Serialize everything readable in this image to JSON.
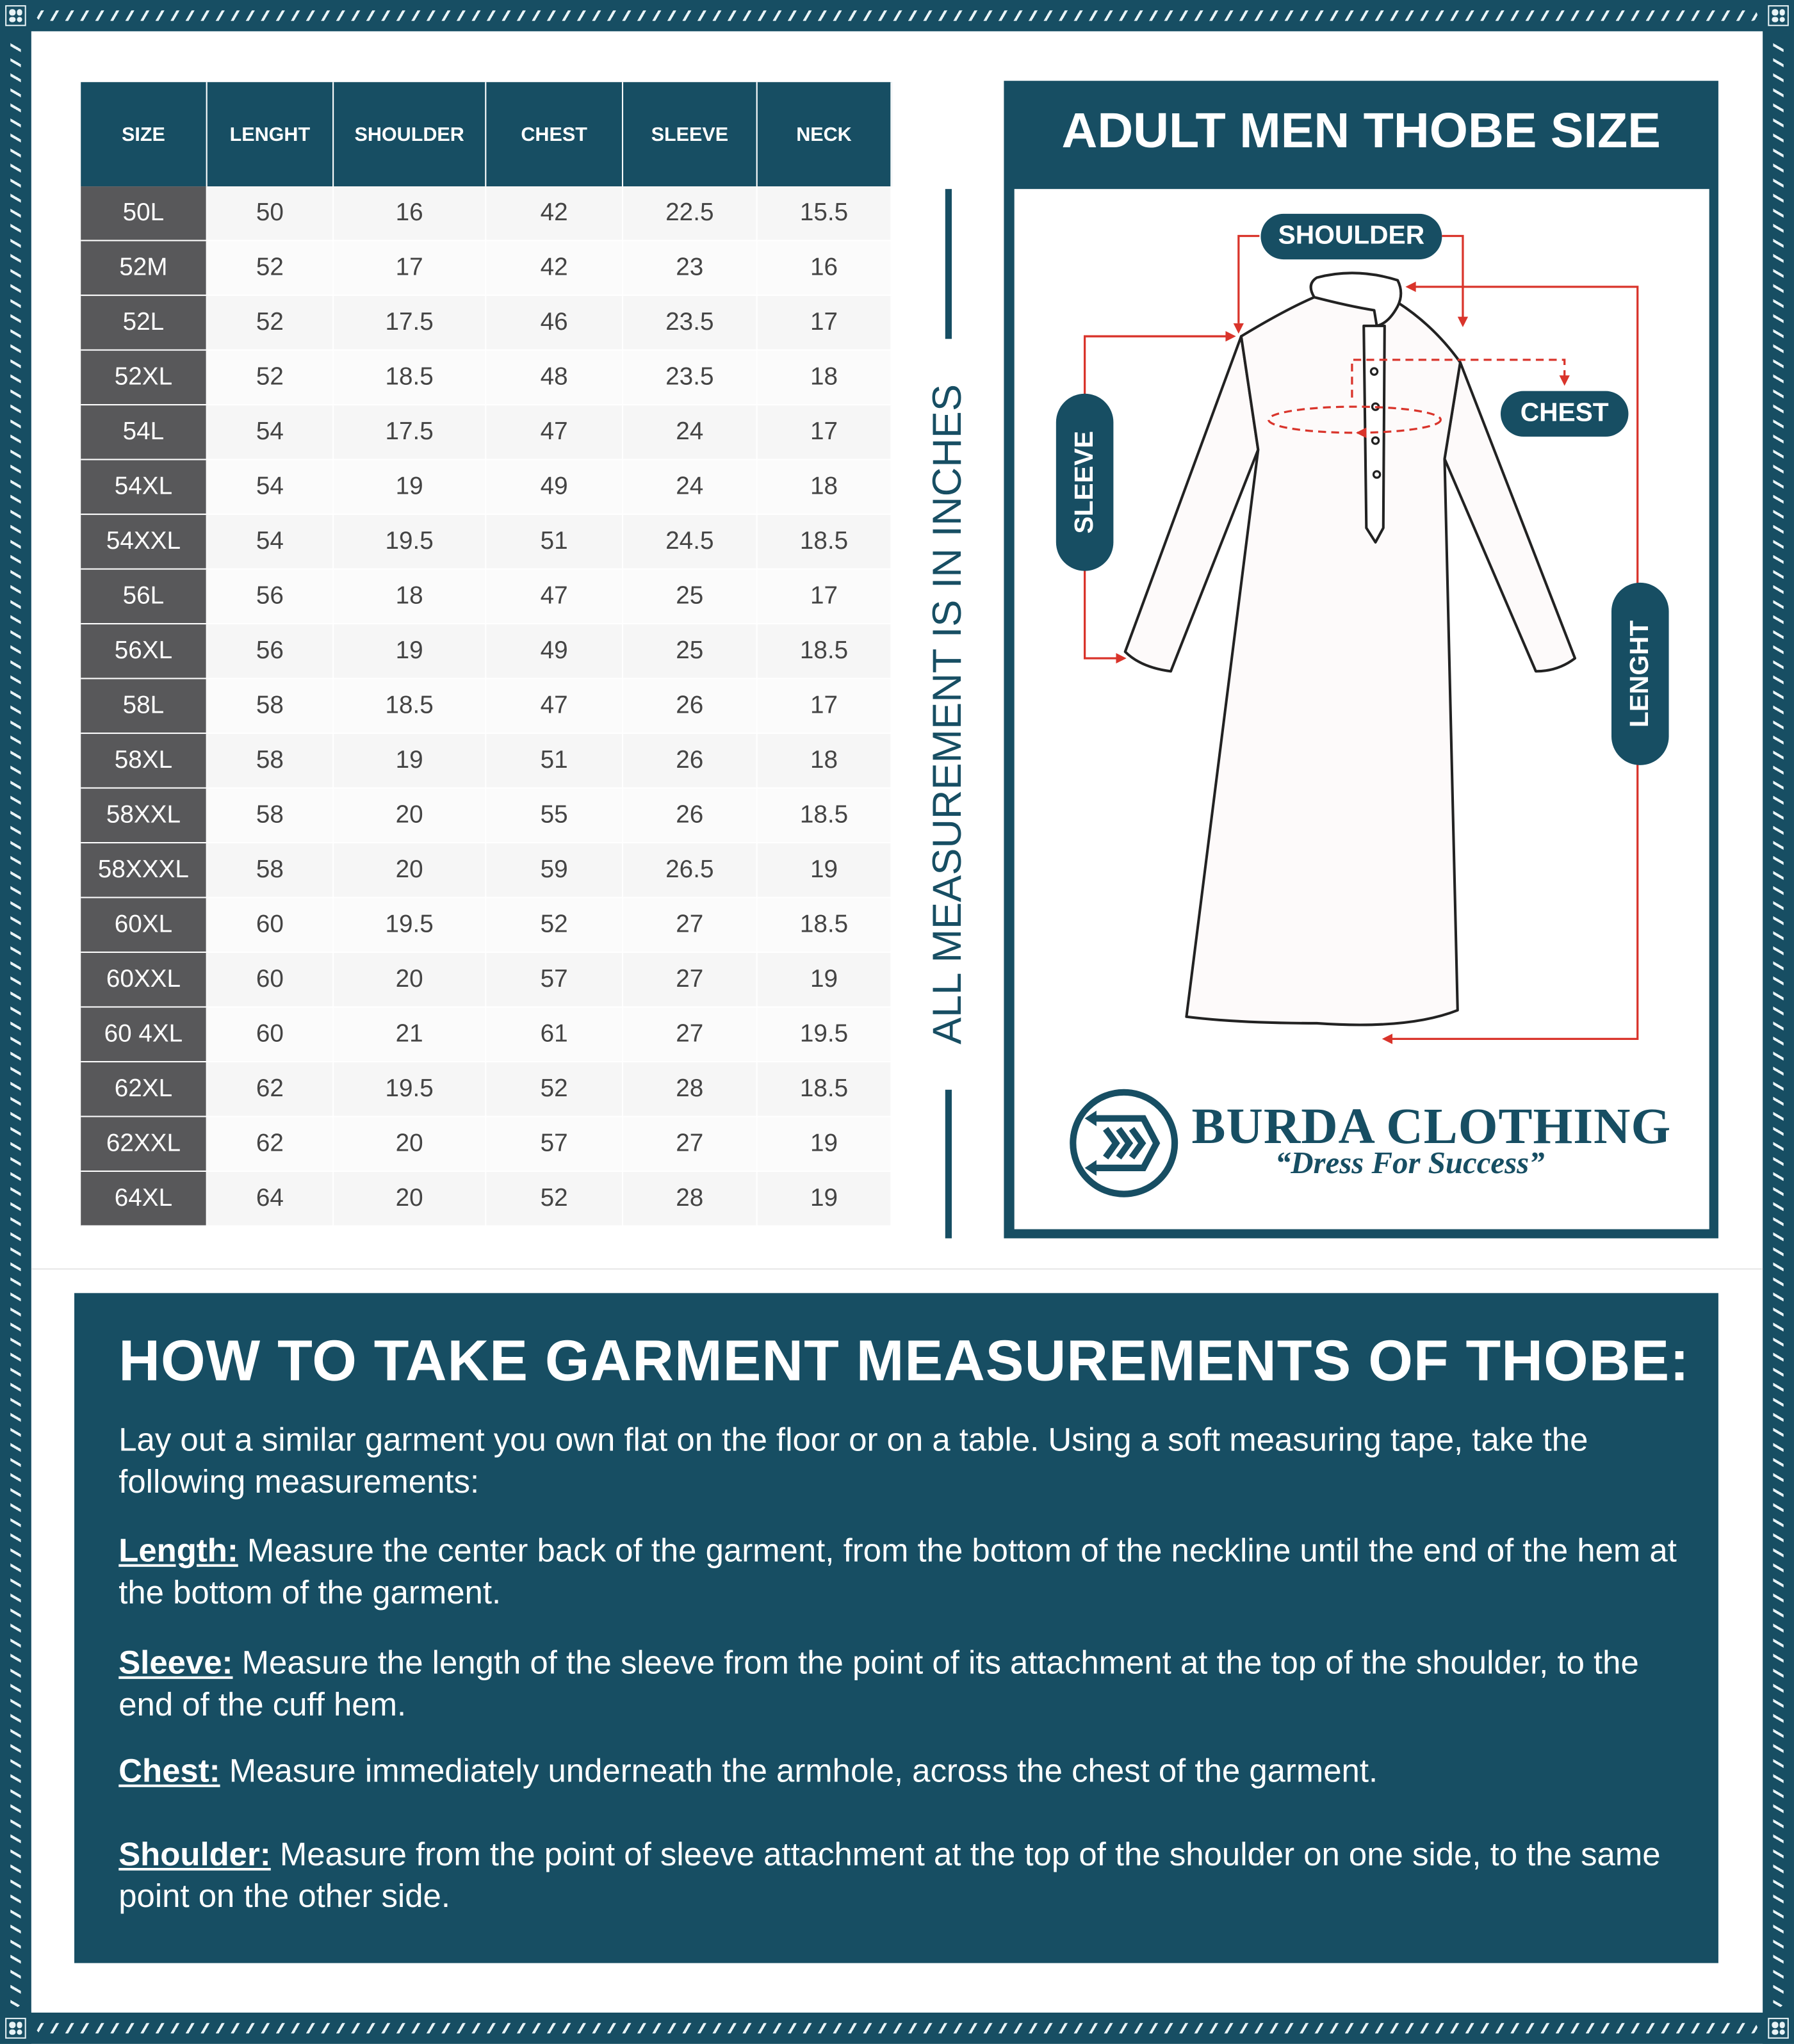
{
  "colors": {
    "brand": "#174e63",
    "size_cell": "#58585a",
    "measure_line": "#d9342b"
  },
  "table": {
    "headers": [
      "SIZE",
      "LENGHT",
      "SHOULDER",
      "CHEST",
      "SLEEVE",
      "NECK"
    ],
    "rows": [
      [
        "50L",
        "50",
        "16",
        "42",
        "22.5",
        "15.5"
      ],
      [
        "52M",
        "52",
        "17",
        "42",
        "23",
        "16"
      ],
      [
        "52L",
        "52",
        "17.5",
        "46",
        "23.5",
        "17"
      ],
      [
        "52XL",
        "52",
        "18.5",
        "48",
        "23.5",
        "18"
      ],
      [
        "54L",
        "54",
        "17.5",
        "47",
        "24",
        "17"
      ],
      [
        "54XL",
        "54",
        "19",
        "49",
        "24",
        "18"
      ],
      [
        "54XXL",
        "54",
        "19.5",
        "51",
        "24.5",
        "18.5"
      ],
      [
        "56L",
        "56",
        "18",
        "47",
        "25",
        "17"
      ],
      [
        "56XL",
        "56",
        "19",
        "49",
        "25",
        "18.5"
      ],
      [
        "58L",
        "58",
        "18.5",
        "47",
        "26",
        "17"
      ],
      [
        "58XL",
        "58",
        "19",
        "51",
        "26",
        "18"
      ],
      [
        "58XXL",
        "58",
        "20",
        "55",
        "26",
        "18.5"
      ],
      [
        "58XXXL",
        "58",
        "20",
        "59",
        "26.5",
        "19"
      ],
      [
        "60XL",
        "60",
        "19.5",
        "52",
        "27",
        "18.5"
      ],
      [
        "60XXL",
        "60",
        "20",
        "57",
        "27",
        "19"
      ],
      [
        "60 4XL",
        "60",
        "21",
        "61",
        "27",
        "19.5"
      ],
      [
        "62XL",
        "62",
        "19.5",
        "52",
        "28",
        "18.5"
      ],
      [
        "62XXL",
        "62",
        "20",
        "57",
        "27",
        "19"
      ],
      [
        "64XL",
        "64",
        "20",
        "52",
        "28",
        "19"
      ]
    ]
  },
  "units_note": "ALL MEASUREMENT IS IN INCHES",
  "panel": {
    "title": "ADULT MEN THOBE SIZE",
    "labels": {
      "shoulder": "SHOULDER",
      "chest": "CHEST",
      "sleeve": "SLEEVE",
      "length": "LENGHT"
    },
    "brand_name": "BURDA CLOTHING",
    "tagline": "“Dress For Success”"
  },
  "howto": {
    "title": "HOW TO TAKE GARMENT MEASUREMENTS OF THOBE:",
    "intro": "Lay out a similar garment you own flat on the floor or on a table. Using a soft measuring tape, take the following measurements:",
    "items": [
      {
        "term": "Length:",
        "text": " Measure the center back of the garment, from the bottom of the neckline until the end of the hem at the bottom of the garment."
      },
      {
        "term": "Sleeve:",
        "text": " Measure the length of the sleeve from the point of its attachment at the top of the shoulder, to the end of the cuff hem."
      },
      {
        "term": "Chest:",
        "text": " Measure immediately underneath the armhole, across the chest of the garment."
      },
      {
        "term": "Shoulder:",
        "text": " Measure from the point of sleeve attachment at the top of the shoulder on one side, to the same point on the other side."
      }
    ]
  }
}
